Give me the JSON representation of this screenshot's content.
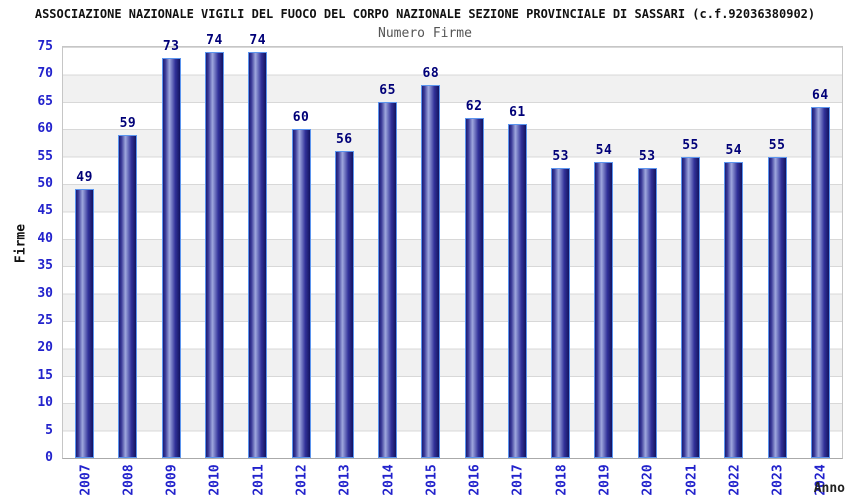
{
  "title": "ASSOCIAZIONE NAZIONALE VIGILI DEL FUOCO DEL CORPO NAZIONALE SEZIONE PROVINCIALE DI SASSARI (c.f.92036380902)",
  "subtitle": "Numero Firme",
  "chart_data": {
    "type": "bar",
    "title": "Numero Firme",
    "categories": [
      "2007",
      "2008",
      "2009",
      "2010",
      "2011",
      "2012",
      "2013",
      "2014",
      "2015",
      "2016",
      "2017",
      "2018",
      "2019",
      "2020",
      "2021",
      "2022",
      "2023",
      "2024"
    ],
    "values": [
      49,
      59,
      73,
      74,
      74,
      60,
      56,
      65,
      68,
      62,
      61,
      53,
      54,
      53,
      55,
      54,
      55,
      64
    ],
    "xlabel": "Anno",
    "ylabel": "Firme",
    "ylim": [
      0,
      75
    ],
    "ytick_step": 5,
    "grid": true,
    "legend": "none",
    "colors": {
      "bar_edge": "#5b95ef",
      "bar_dark": "#1c1c74",
      "bar_mid": "#3a3a98",
      "bar_light": "#9fa8de",
      "bar_mid2": "#32329a",
      "bar_darkest": "#131360",
      "tick_label": "#2222cc",
      "value_label": "#000078",
      "band_gray": "#f1f1f1",
      "gridline": "#d8d8d8",
      "title_color": "#111111",
      "subtitle_color": "#555555"
    }
  }
}
